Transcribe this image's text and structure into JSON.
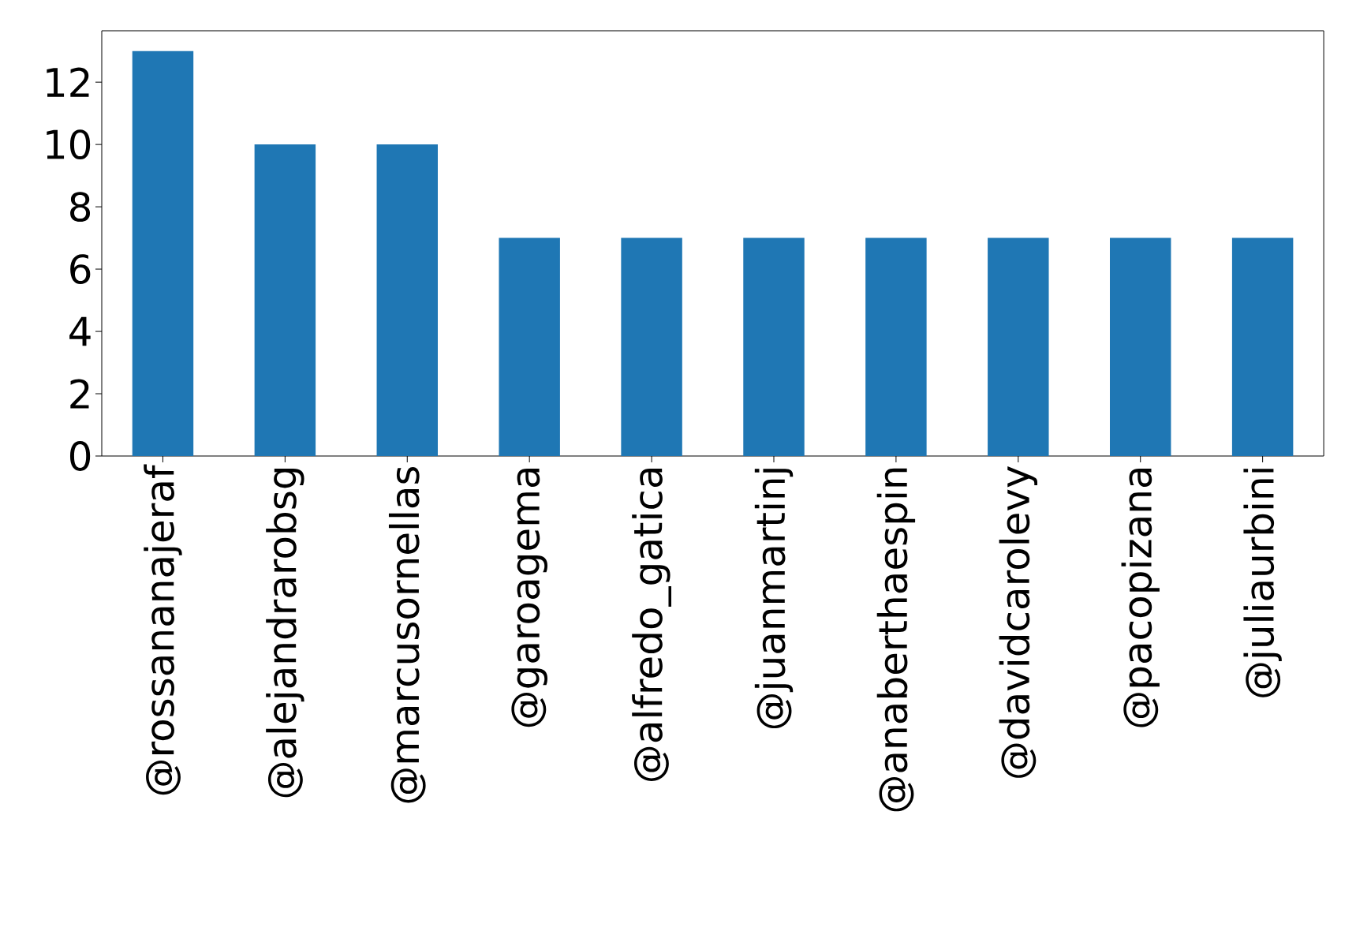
{
  "chart_data": {
    "type": "bar",
    "categories": [
      "@rossananajeraf",
      "@alejandrarobsg",
      "@marcusornellas",
      "@garoagema",
      "@alfredo_gatica",
      "@juanmartinj",
      "@anaberthaespin",
      "@davidcarolevy",
      "@pacopizana",
      "@juliaurbini"
    ],
    "values": [
      13,
      10,
      10,
      7,
      7,
      7,
      7,
      7,
      7,
      7
    ],
    "color": "#1f77b4",
    "ylim": [
      0,
      13.65
    ],
    "yticks": [
      0,
      2,
      4,
      6,
      8,
      10,
      12
    ]
  }
}
